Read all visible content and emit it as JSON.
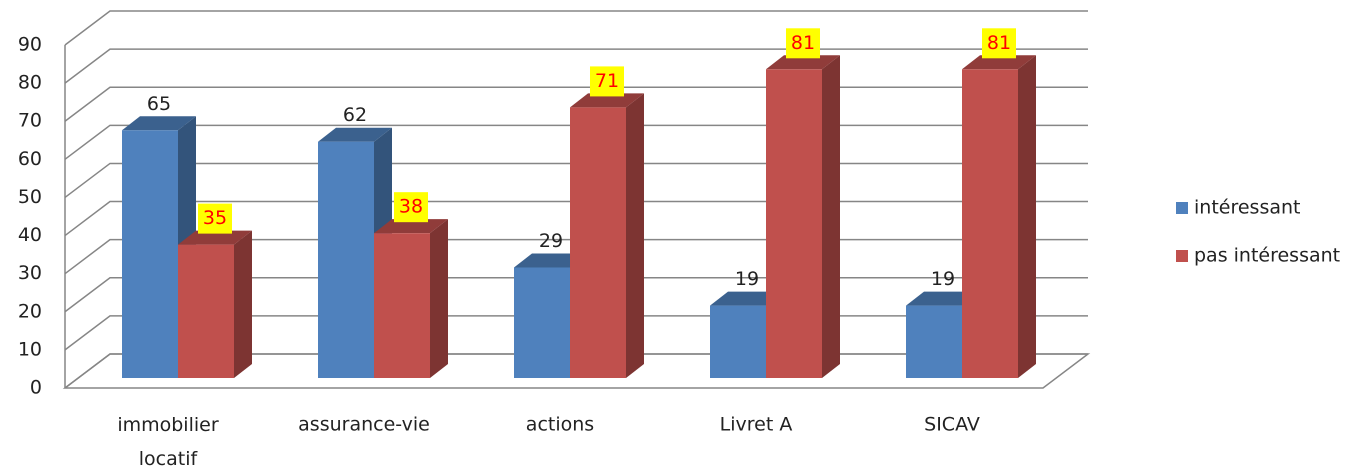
{
  "chart_data": {
    "type": "bar3d",
    "categories": [
      "immobilier locatif",
      "assurance-vie",
      "actions",
      "Livret A",
      "SICAV"
    ],
    "series": [
      {
        "name": "intéressant",
        "color": "#4f81bd",
        "values": [
          65,
          62,
          29,
          19,
          19
        ]
      },
      {
        "name": "pas intéressant",
        "color": "#c0504d",
        "values": [
          35,
          38,
          71,
          81,
          81
        ]
      }
    ],
    "ylim": [
      0,
      90
    ],
    "yticks": [
      0,
      10,
      20,
      30,
      40,
      50,
      60,
      70,
      80,
      90
    ],
    "grid": true,
    "legend": "right"
  }
}
